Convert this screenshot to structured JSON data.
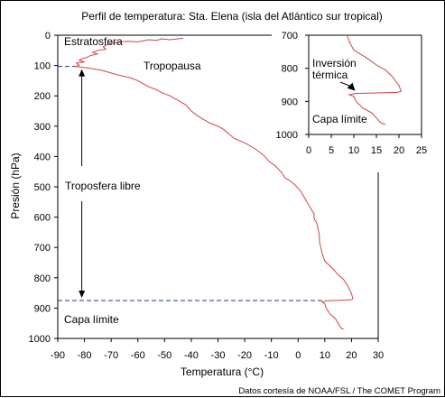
{
  "chart_data": [
    {
      "type": "line",
      "title": "Perfil de temperatura: Sta. Elena (isla del Atlántico sur tropical)",
      "xlabel": "Temperatura (°C)",
      "ylabel": "Presión (hPa)",
      "xlim": [
        -90,
        30
      ],
      "ylim": [
        0,
        1000
      ],
      "y_inverted": true,
      "xticks": [
        -90,
        -80,
        -70,
        -60,
        -50,
        -40,
        -30,
        -20,
        -10,
        0,
        10,
        20,
        30
      ],
      "yticks": [
        0,
        100,
        200,
        300,
        400,
        500,
        600,
        700,
        800,
        900,
        1000
      ],
      "grid": false,
      "series": [
        {
          "name": "",
          "color": "#cc4444",
          "points": [
            [
              -43,
              10
            ],
            [
              -46,
              13
            ],
            [
              -48,
              15
            ],
            [
              -51,
              12
            ],
            [
              -53,
              17
            ],
            [
              -56,
              15
            ],
            [
              -60,
              22
            ],
            [
              -64,
              20
            ],
            [
              -68,
              24
            ],
            [
              -71,
              29
            ],
            [
              -73,
              38
            ],
            [
              -72,
              46
            ],
            [
              -75,
              50
            ],
            [
              -77,
              57
            ],
            [
              -75,
              62
            ],
            [
              -78,
              68
            ],
            [
              -79,
              73
            ],
            [
              -81,
              78
            ],
            [
              -82,
              83
            ],
            [
              -80,
              88
            ],
            [
              -83,
              92
            ],
            [
              -82,
              99
            ],
            [
              -83,
              103
            ],
            [
              -79,
              108
            ],
            [
              -74,
              115
            ],
            [
              -71,
              122
            ],
            [
              -68,
              130
            ],
            [
              -63,
              140
            ],
            [
              -60,
              150
            ],
            [
              -58,
              160
            ],
            [
              -56,
              170
            ],
            [
              -53,
              180
            ],
            [
              -51,
              190
            ],
            [
              -48,
              200
            ],
            [
              -45,
              215
            ],
            [
              -42,
              230
            ],
            [
              -40,
              250
            ],
            [
              -37,
              270
            ],
            [
              -33,
              290
            ],
            [
              -30,
              300
            ],
            [
              -28,
              310
            ],
            [
              -26,
              325
            ],
            [
              -24,
              340
            ],
            [
              -20,
              355
            ],
            [
              -16,
              375
            ],
            [
              -13,
              395
            ],
            [
              -11,
              415
            ],
            [
              -8,
              435
            ],
            [
              -6,
              455
            ],
            [
              -5,
              470
            ],
            [
              -3,
              480
            ],
            [
              -1,
              495
            ],
            [
              1,
              515
            ],
            [
              2,
              530
            ],
            [
              3,
              545
            ],
            [
              4,
              560
            ],
            [
              5,
              575
            ],
            [
              6,
              590
            ],
            [
              6,
              605
            ],
            [
              7,
              620
            ],
            [
              7.5,
              640
            ],
            [
              8,
              660
            ],
            [
              8,
              680
            ],
            [
              8.5,
              700
            ],
            [
              9,
              720
            ],
            [
              10,
              745
            ],
            [
              13,
              770
            ],
            [
              15,
              790
            ],
            [
              17,
              805
            ],
            [
              18.5,
              825
            ],
            [
              20,
              852
            ],
            [
              20.5,
              870
            ],
            [
              19.5,
              873
            ],
            [
              13,
              875
            ],
            [
              10.5,
              876
            ],
            [
              9,
              880
            ],
            [
              10,
              885
            ],
            [
              10.5,
              900
            ],
            [
              12,
              920
            ],
            [
              14,
              935
            ],
            [
              15,
              950
            ],
            [
              16,
              965
            ],
            [
              17,
              970
            ]
          ]
        }
      ],
      "reference_lines": [
        {
          "pressure": 103
        },
        {
          "pressure": 875
        }
      ],
      "annotations": {
        "stratosphere": "Estratosfera",
        "tropopause": "Tropopausa",
        "free_troposphere": "Troposfera libre",
        "boundary_layer": "Capa límite"
      }
    },
    {
      "type": "line",
      "title": "",
      "xlim": [
        0,
        25
      ],
      "ylim": [
        700,
        1000
      ],
      "y_inverted": true,
      "xticks": [
        0,
        5,
        10,
        15,
        20,
        25
      ],
      "yticks": [
        700,
        800,
        900,
        1000
      ],
      "series": [
        {
          "name": "",
          "color": "#cc4444",
          "points": [
            [
              8.5,
              700
            ],
            [
              9,
              720
            ],
            [
              10,
              745
            ],
            [
              13,
              770
            ],
            [
              15,
              790
            ],
            [
              17,
              805
            ],
            [
              18.5,
              825
            ],
            [
              20,
              852
            ],
            [
              20.5,
              870
            ],
            [
              19.5,
              873
            ],
            [
              13,
              875
            ],
            [
              10.5,
              876
            ],
            [
              9,
              880
            ],
            [
              10,
              885
            ],
            [
              10.5,
              900
            ],
            [
              12,
              920
            ],
            [
              14,
              935
            ],
            [
              15,
              950
            ],
            [
              16,
              965
            ],
            [
              17,
              970
            ]
          ]
        }
      ],
      "annotations": {
        "inversion_line1": "Inversión",
        "inversion_line2": "térmica",
        "boundary_layer": "Capa límite"
      }
    }
  ],
  "credit": "Datos cortesía de NOAA/FSL / The COMET Program"
}
